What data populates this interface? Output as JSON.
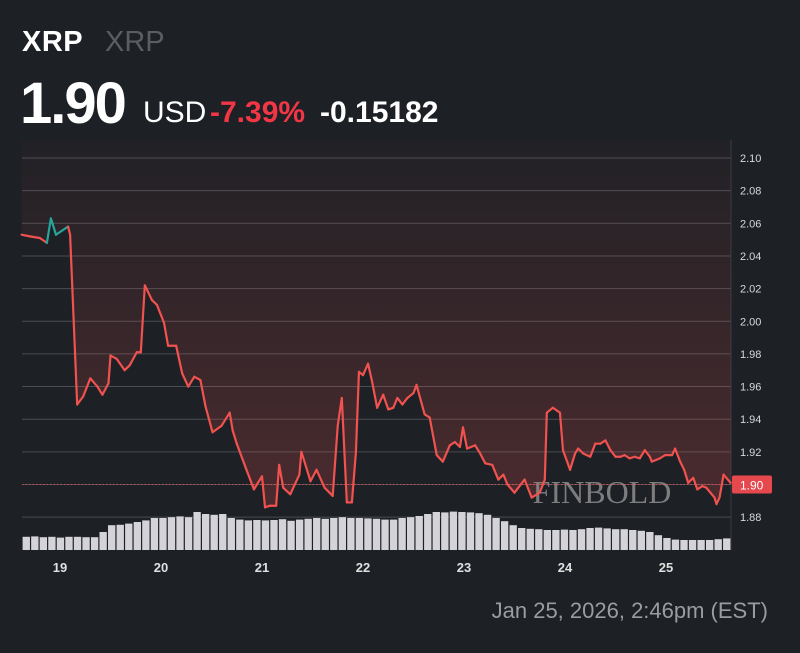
{
  "header": {
    "symbol": "XRP",
    "name": "XRP",
    "price": "1.90",
    "currency": "USD",
    "change_pct": "-7.39%",
    "change_abs": "-0.15182"
  },
  "timestamp": "Jan 25, 2026, 2:46pm (EST)",
  "watermark": "FINBOLD",
  "colors": {
    "background": "#1d2025",
    "down": "#f0524f",
    "up": "#26a69a",
    "volume": "#d4d4d8"
  },
  "chart_data": {
    "type": "line",
    "title": "",
    "xlabel": "",
    "ylabel": "",
    "ylim": [
      1.865,
      2.11
    ],
    "xlim": [
      18.62,
      25.66
    ],
    "grid": true,
    "y_axis_position": "right",
    "y_ticks": [
      "2.10",
      "2.08",
      "2.06",
      "2.04",
      "2.02",
      "2.00",
      "1.98",
      "1.96",
      "1.94",
      "1.92",
      "1.90",
      "1.88"
    ],
    "x_ticks": [
      "19",
      "20",
      "21",
      "22",
      "23",
      "24",
      "25"
    ],
    "last_price_label": "1.90",
    "last_price": 1.9,
    "x": [
      18.62,
      18.7,
      18.8,
      18.87,
      18.91,
      18.96,
      19.08,
      19.1,
      19.17,
      19.23,
      19.3,
      19.37,
      19.42,
      19.48,
      19.5,
      19.56,
      19.64,
      19.69,
      19.76,
      19.8,
      19.84,
      19.91,
      19.96,
      20.03,
      20.07,
      20.15,
      20.21,
      20.27,
      20.33,
      20.39,
      20.44,
      20.51,
      20.6,
      20.68,
      20.71,
      20.75,
      20.84,
      20.92,
      21.0,
      21.03,
      21.08,
      21.14,
      21.17,
      21.21,
      21.28,
      21.37,
      21.39,
      21.48,
      21.54,
      21.62,
      21.7,
      21.75,
      21.79,
      21.84,
      21.89,
      21.93,
      21.96,
      22.0,
      22.05,
      22.09,
      22.14,
      22.2,
      22.25,
      22.3,
      22.34,
      22.39,
      22.44,
      22.5,
      22.53,
      22.61,
      22.66,
      22.73,
      22.79,
      22.86,
      22.91,
      22.96,
      22.99,
      23.03,
      23.11,
      23.16,
      23.21,
      23.28,
      23.34,
      23.39,
      23.43,
      23.5,
      23.6,
      23.67,
      23.75,
      23.8,
      23.82,
      23.88,
      23.95,
      23.98,
      24.05,
      24.1,
      24.13,
      24.18,
      24.25,
      24.3,
      24.35,
      24.4,
      24.45,
      24.5,
      24.55,
      24.59,
      24.64,
      24.69,
      24.74,
      24.79,
      24.84,
      24.86,
      24.94,
      24.99,
      25.06,
      25.09,
      25.14,
      25.18,
      25.22,
      25.27,
      25.31,
      25.36,
      25.4,
      25.44,
      25.48,
      25.5,
      25.53,
      25.57,
      25.64
    ],
    "values": [
      2.053,
      2.052,
      2.051,
      2.048,
      2.063,
      2.053,
      2.058,
      2.053,
      1.949,
      1.954,
      1.965,
      1.96,
      1.955,
      1.962,
      1.979,
      1.977,
      1.97,
      1.973,
      1.981,
      1.981,
      2.022,
      2.013,
      2.01,
      1.999,
      1.985,
      1.985,
      1.968,
      1.96,
      1.966,
      1.964,
      1.948,
      1.932,
      1.936,
      1.944,
      1.933,
      1.925,
      1.91,
      1.897,
      1.905,
      1.886,
      1.887,
      1.887,
      1.912,
      1.898,
      1.894,
      1.906,
      1.92,
      1.902,
      1.909,
      1.898,
      1.893,
      1.936,
      1.953,
      1.889,
      1.889,
      1.92,
      1.969,
      1.967,
      1.974,
      1.963,
      1.947,
      1.955,
      1.946,
      1.947,
      1.953,
      1.949,
      1.953,
      1.956,
      1.961,
      1.943,
      1.941,
      1.918,
      1.914,
      1.924,
      1.926,
      1.923,
      1.935,
      1.922,
      1.924,
      1.919,
      1.913,
      1.912,
      1.903,
      1.906,
      1.9,
      1.895,
      1.903,
      1.892,
      1.895,
      1.903,
      1.944,
      1.947,
      1.944,
      1.921,
      1.909,
      1.919,
      1.922,
      1.919,
      1.917,
      1.925,
      1.925,
      1.927,
      1.921,
      1.917,
      1.917,
      1.918,
      1.916,
      1.917,
      1.916,
      1.921,
      1.917,
      1.914,
      1.916,
      1.918,
      1.918,
      1.922,
      1.914,
      1.909,
      1.901,
      1.904,
      1.897,
      1.899,
      1.898,
      1.895,
      1.892,
      1.888,
      1.892,
      1.906,
      1.901
    ],
    "volume_relative": [
      0.33,
      0.34,
      0.32,
      0.33,
      0.31,
      0.33,
      0.33,
      0.32,
      0.32,
      0.45,
      0.62,
      0.63,
      0.66,
      0.7,
      0.74,
      0.8,
      0.8,
      0.82,
      0.84,
      0.82,
      0.95,
      0.9,
      0.88,
      0.9,
      0.8,
      0.76,
      0.74,
      0.75,
      0.74,
      0.75,
      0.77,
      0.73,
      0.76,
      0.78,
      0.8,
      0.78,
      0.8,
      0.82,
      0.8,
      0.8,
      0.79,
      0.78,
      0.76,
      0.76,
      0.8,
      0.82,
      0.85,
      0.9,
      0.95,
      0.94,
      0.96,
      0.95,
      0.94,
      0.92,
      0.88,
      0.8,
      0.72,
      0.62,
      0.55,
      0.53,
      0.52,
      0.5,
      0.5,
      0.51,
      0.5,
      0.52,
      0.55,
      0.56,
      0.54,
      0.52,
      0.52,
      0.5,
      0.48,
      0.45,
      0.37,
      0.3,
      0.26,
      0.25,
      0.25,
      0.25,
      0.25,
      0.27,
      0.29
    ]
  }
}
